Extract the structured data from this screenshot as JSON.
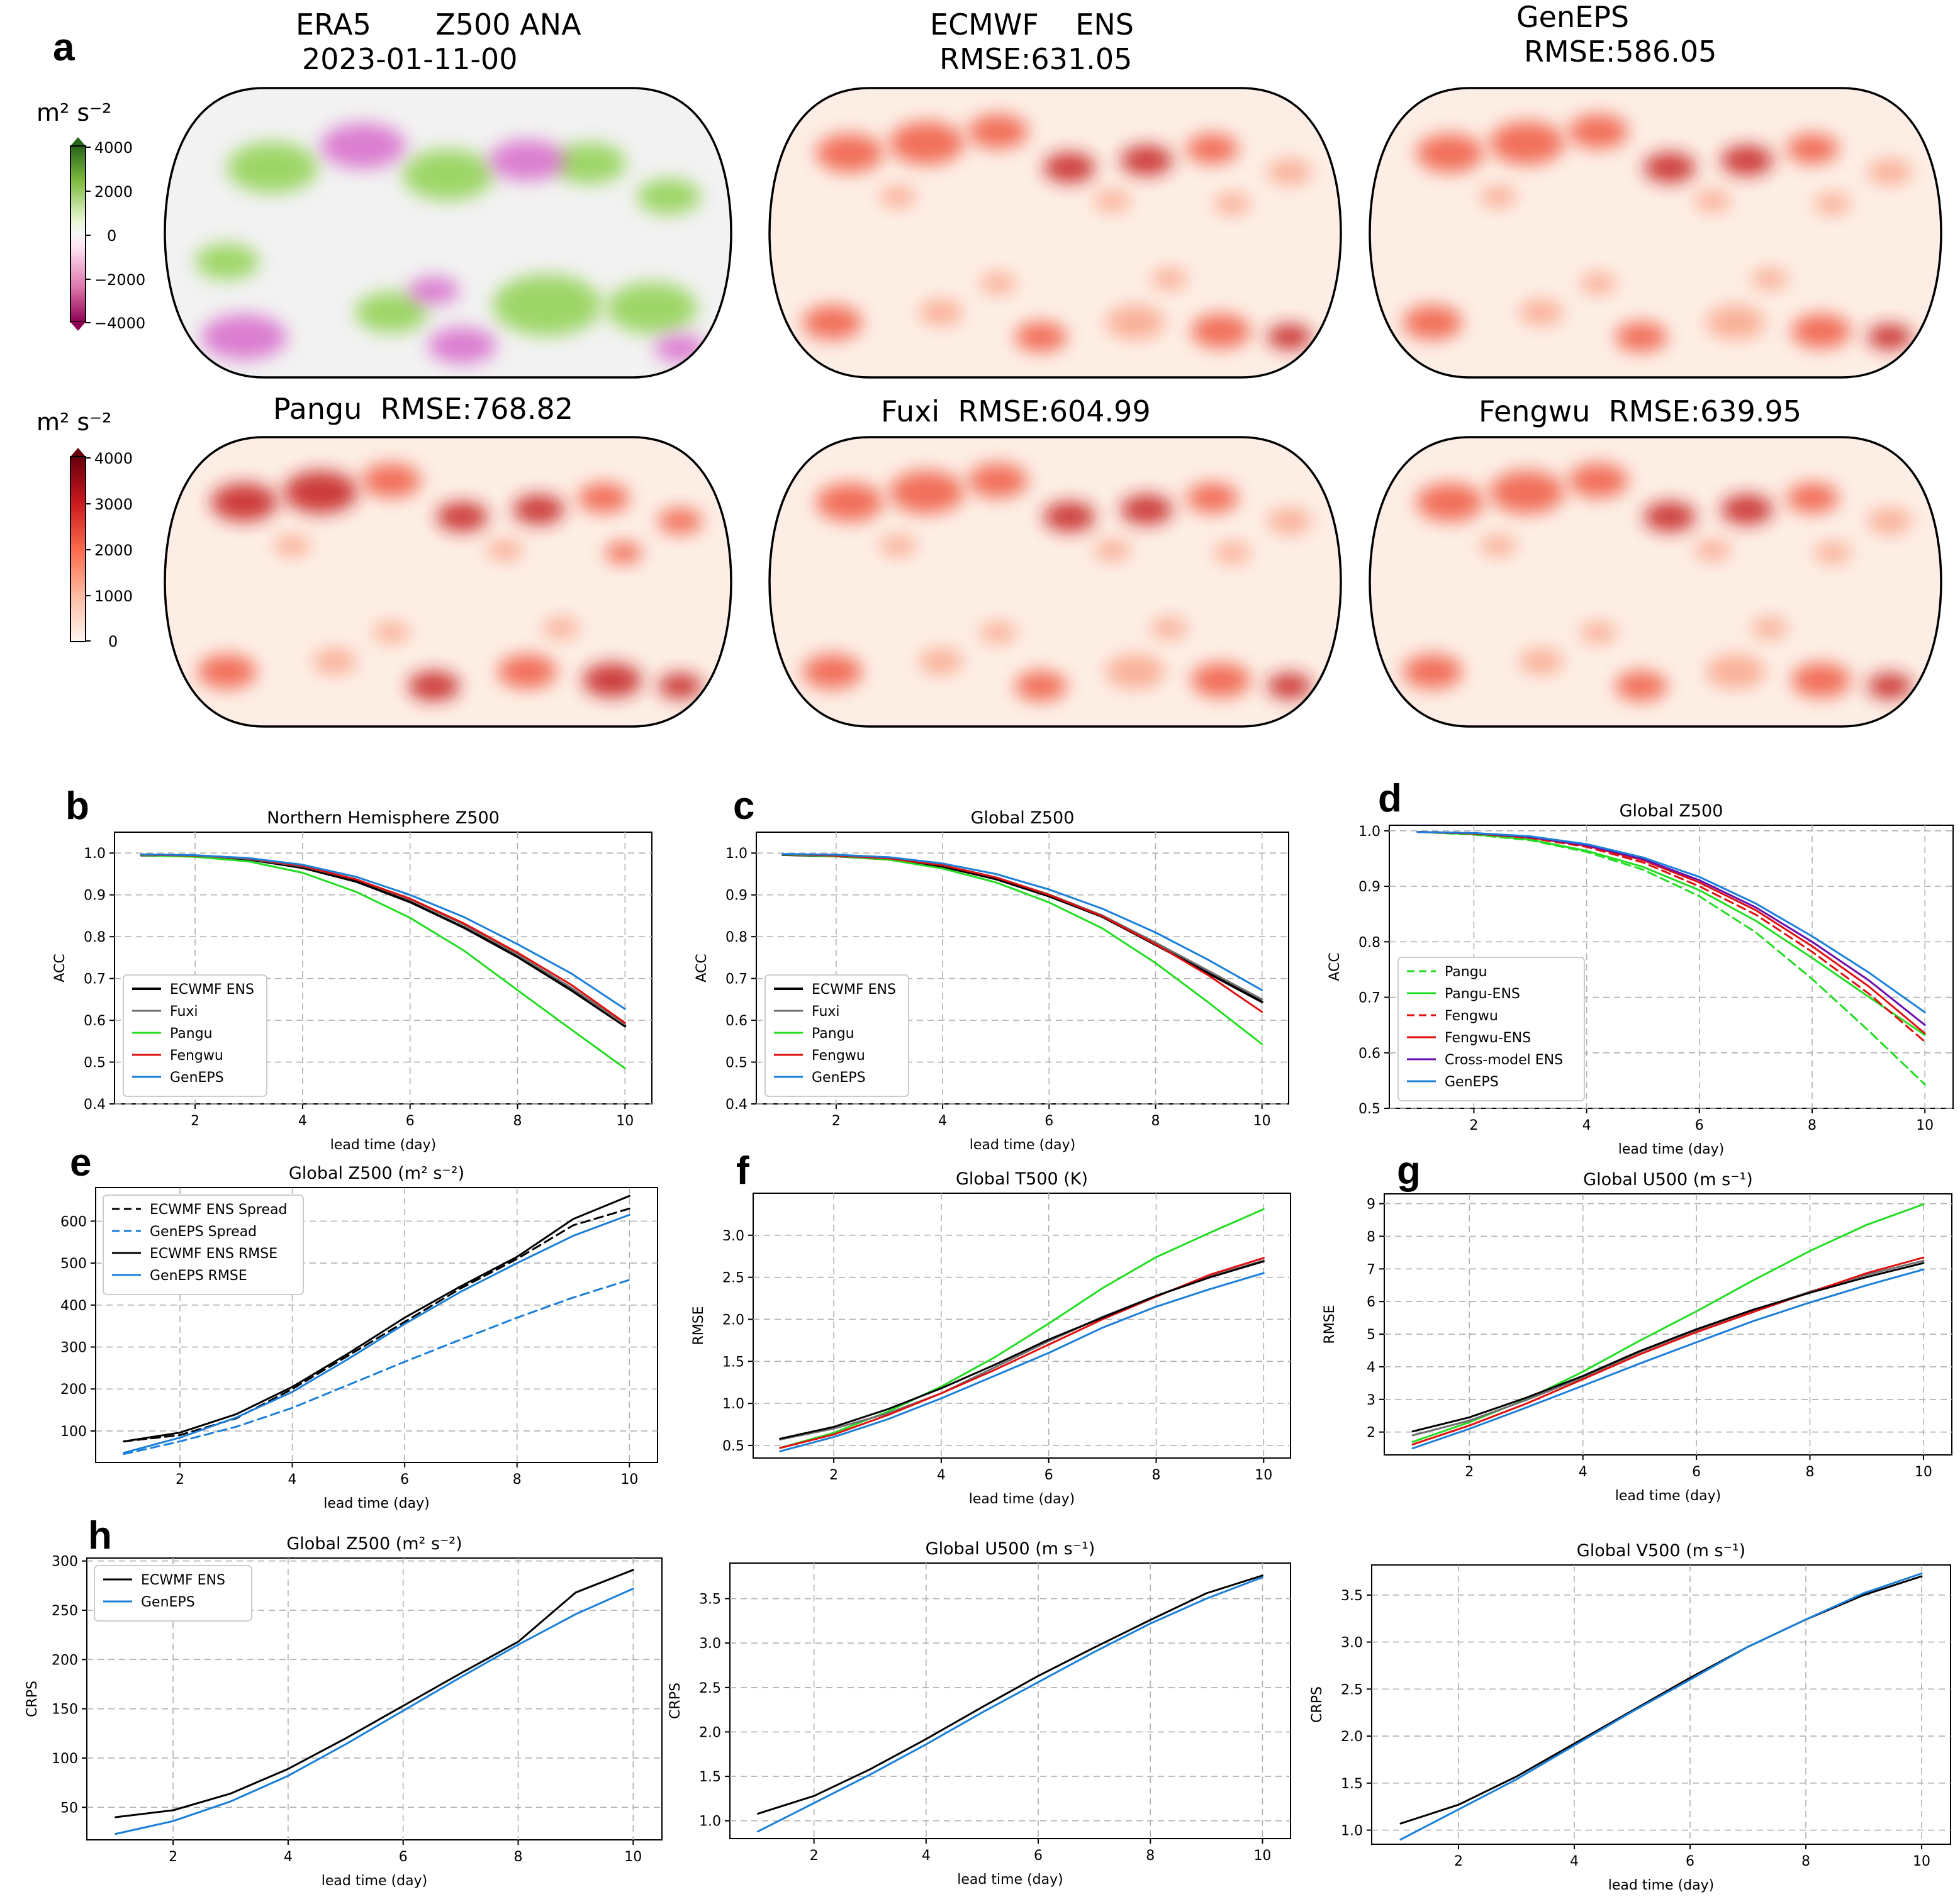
{
  "colors": {
    "ECWMF ENS": "#000000",
    "Fuxi": "#707070",
    "Pangu": "#22dd22",
    "Pangu-ENS": "#22dd22",
    "Fengwu": "#e01010",
    "Fengwu-ENS": "#e01010",
    "GenEPS": "#1a7fd9",
    "Cross-model ENS": "#6a0dad",
    "ECWMF ENS Spread": "#000000",
    "GenEPS  Spread": "#1a7fd9",
    "ECWMF ENS RMSE": "#000000",
    "GenEPS  RMSE": "#1a7fd9"
  },
  "maps": {
    "letter": "a",
    "unit_label": "m² s⁻²",
    "anomaly_colorbar": {
      "ticks": [
        "4000",
        "2000",
        "0",
        "−2000",
        "−4000"
      ],
      "range": [
        -4000,
        4000
      ],
      "colormap": "PiYG"
    },
    "error_colorbar": {
      "ticks": [
        "4000",
        "3000",
        "2000",
        "1000",
        "0"
      ],
      "range": [
        0,
        4000
      ],
      "colormap": "Reds"
    },
    "panels": [
      {
        "title_line1": "ERA5       Z500 ANA",
        "title_line2": "2023-01-11-00",
        "kind": "anomaly"
      },
      {
        "title_line1": "ECMWF    ENS",
        "title_line2": "RMSE:631.05",
        "kind": "error"
      },
      {
        "title_line1": "GenEPS",
        "title_line2": "RMSE:586.05",
        "kind": "error"
      },
      {
        "title_line1": "Pangu  RMSE:768.82",
        "title_line2": "",
        "kind": "error"
      },
      {
        "title_line1": "Fuxi  RMSE:604.99",
        "title_line2": "",
        "kind": "error"
      },
      {
        "title_line1": "Fengwu  RMSE:639.95",
        "title_line2": "",
        "kind": "error"
      }
    ]
  },
  "chart_data": [
    {
      "id": "b",
      "letter": "b",
      "type": "line",
      "title": "Northern Hemisphere Z500",
      "xlabel": "lead time (day)",
      "ylabel": "ACC",
      "xlim": [
        0.5,
        10.5
      ],
      "ylim": [
        0.4,
        1.05
      ],
      "xticks": [
        2,
        4,
        6,
        8,
        10
      ],
      "yticks": [
        0.4,
        0.5,
        0.6,
        0.7,
        0.8,
        0.9,
        1.0
      ],
      "ytick_labels": [
        "0.4",
        "0.5",
        "0.6",
        "0.7",
        "0.8",
        "0.9",
        "1.0"
      ],
      "legend_position": "lower-left",
      "x": [
        1,
        2,
        3,
        4,
        5,
        6,
        7,
        8,
        9,
        10
      ],
      "series": [
        {
          "name": "ECWMF ENS",
          "style": "solid",
          "width": 4,
          "values": [
            0.995,
            0.993,
            0.985,
            0.965,
            0.932,
            0.883,
            0.822,
            0.752,
            0.672,
            0.586
          ]
        },
        {
          "name": "Fuxi",
          "style": "solid",
          "width": 3,
          "values": [
            0.996,
            0.994,
            0.986,
            0.968,
            0.937,
            0.889,
            0.829,
            0.757,
            0.678,
            0.59
          ]
        },
        {
          "name": "Pangu",
          "style": "solid",
          "width": 3,
          "values": [
            0.995,
            0.991,
            0.98,
            0.953,
            0.907,
            0.845,
            0.767,
            0.672,
            0.578,
            0.485
          ]
        },
        {
          "name": "Fengwu",
          "style": "solid",
          "width": 3,
          "values": [
            0.996,
            0.994,
            0.987,
            0.969,
            0.937,
            0.891,
            0.832,
            0.762,
            0.685,
            0.594
          ]
        },
        {
          "name": "GenEPS",
          "style": "solid",
          "width": 3,
          "values": [
            0.997,
            0.995,
            0.988,
            0.972,
            0.943,
            0.9,
            0.847,
            0.782,
            0.712,
            0.627
          ]
        }
      ]
    },
    {
      "id": "c",
      "letter": "c",
      "type": "line",
      "title": "Global Z500",
      "xlabel": "lead time (day)",
      "ylabel": "ACC",
      "xlim": [
        0.5,
        10.5
      ],
      "ylim": [
        0.4,
        1.05
      ],
      "xticks": [
        2,
        4,
        6,
        8,
        10
      ],
      "yticks": [
        0.4,
        0.5,
        0.6,
        0.7,
        0.8,
        0.9,
        1.0
      ],
      "ytick_labels": [
        "0.4",
        "0.5",
        "0.6",
        "0.7",
        "0.8",
        "0.9",
        "1.0"
      ],
      "legend_position": "lower-left",
      "x": [
        1,
        2,
        3,
        4,
        5,
        6,
        7,
        8,
        9,
        10
      ],
      "series": [
        {
          "name": "ECWMF ENS",
          "style": "solid",
          "width": 4,
          "values": [
            0.996,
            0.993,
            0.985,
            0.968,
            0.938,
            0.897,
            0.848,
            0.781,
            0.712,
            0.644
          ]
        },
        {
          "name": "Fuxi",
          "style": "solid",
          "width": 3,
          "values": [
            0.997,
            0.994,
            0.987,
            0.971,
            0.942,
            0.901,
            0.851,
            0.786,
            0.718,
            0.65
          ]
        },
        {
          "name": "Pangu",
          "style": "solid",
          "width": 3,
          "values": [
            0.996,
            0.993,
            0.984,
            0.963,
            0.93,
            0.882,
            0.82,
            0.737,
            0.642,
            0.543
          ]
        },
        {
          "name": "Fengwu",
          "style": "solid",
          "width": 3,
          "values": [
            0.997,
            0.994,
            0.987,
            0.971,
            0.942,
            0.9,
            0.849,
            0.782,
            0.707,
            0.62
          ]
        },
        {
          "name": "GenEPS",
          "style": "solid",
          "width": 3,
          "values": [
            0.998,
            0.996,
            0.99,
            0.975,
            0.95,
            0.913,
            0.867,
            0.81,
            0.744,
            0.672
          ]
        }
      ]
    },
    {
      "id": "d",
      "letter": "d",
      "type": "line",
      "title": "Global Z500",
      "xlabel": "lead time (day)",
      "ylabel": "ACC",
      "xlim": [
        0.5,
        10.5
      ],
      "ylim": [
        0.5,
        1.01
      ],
      "xticks": [
        2,
        4,
        6,
        8,
        10
      ],
      "yticks": [
        0.5,
        0.6,
        0.7,
        0.8,
        0.9,
        1.0
      ],
      "ytick_labels": [
        "0.5",
        "0.6",
        "0.7",
        "0.8",
        "0.9",
        "1.0"
      ],
      "legend_position": "lower-left",
      "x": [
        1,
        2,
        3,
        4,
        5,
        6,
        7,
        8,
        9,
        10
      ],
      "series": [
        {
          "name": "Pangu",
          "style": "dashed",
          "width": 3,
          "values": [
            0.998,
            0.993,
            0.983,
            0.962,
            0.93,
            0.882,
            0.817,
            0.733,
            0.64,
            0.543
          ]
        },
        {
          "name": "Pangu-ENS",
          "style": "solid",
          "width": 3,
          "values": [
            0.998,
            0.994,
            0.984,
            0.964,
            0.935,
            0.893,
            0.838,
            0.771,
            0.701,
            0.632
          ]
        },
        {
          "name": "Fengwu",
          "style": "dashed",
          "width": 3,
          "values": [
            0.998,
            0.995,
            0.987,
            0.971,
            0.943,
            0.9,
            0.849,
            0.782,
            0.707,
            0.62
          ]
        },
        {
          "name": "Fengwu-ENS",
          "style": "solid",
          "width": 3,
          "values": [
            0.998,
            0.995,
            0.988,
            0.973,
            0.947,
            0.907,
            0.857,
            0.792,
            0.72,
            0.635
          ]
        },
        {
          "name": "Cross-model ENS",
          "style": "solid",
          "width": 3,
          "values": [
            0.998,
            0.996,
            0.989,
            0.974,
            0.949,
            0.911,
            0.862,
            0.8,
            0.731,
            0.65
          ]
        },
        {
          "name": "GenEPS",
          "style": "solid",
          "width": 3,
          "values": [
            0.998,
            0.996,
            0.99,
            0.976,
            0.952,
            0.917,
            0.869,
            0.81,
            0.745,
            0.673
          ]
        }
      ]
    },
    {
      "id": "e",
      "letter": "e",
      "type": "line",
      "title": "Global Z500 (m² s⁻²)",
      "xlabel": "lead time (day)",
      "ylabel": "",
      "xlim": [
        0.5,
        10.5
      ],
      "ylim": [
        25,
        680
      ],
      "xticks": [
        2,
        4,
        6,
        8,
        10
      ],
      "yticks": [
        100,
        200,
        300,
        400,
        500,
        600
      ],
      "ytick_labels": [
        "100",
        "200",
        "300",
        "400",
        "500",
        "600"
      ],
      "legend_position": "top-left",
      "x": [
        1,
        2,
        3,
        4,
        5,
        6,
        7,
        8,
        9,
        10
      ],
      "series": [
        {
          "name": "ECWMF ENS Spread",
          "style": "dashed",
          "width": 3,
          "values": [
            75,
            90,
            130,
            200,
            280,
            360,
            440,
            510,
            590,
            630
          ]
        },
        {
          "name": "GenEPS  Spread",
          "style": "dashed",
          "width": 3,
          "values": [
            45,
            75,
            110,
            155,
            210,
            265,
            318,
            370,
            418,
            460
          ]
        },
        {
          "name": "ECWMF ENS RMSE",
          "style": "solid",
          "width": 3,
          "values": [
            75,
            96,
            140,
            205,
            285,
            370,
            445,
            515,
            605,
            660
          ]
        },
        {
          "name": "GenEPS  RMSE",
          "style": "solid",
          "width": 3,
          "values": [
            48,
            84,
            132,
            193,
            272,
            355,
            432,
            500,
            565,
            615
          ]
        }
      ]
    },
    {
      "id": "f",
      "letter": "f",
      "type": "line",
      "title": "Global T500 (K)",
      "xlabel": "lead time (day)",
      "ylabel": "RMSE",
      "xlim": [
        0.5,
        10.5
      ],
      "ylim": [
        0.35,
        3.5
      ],
      "xticks": [
        2,
        4,
        6,
        8,
        10
      ],
      "yticks": [
        0.5,
        1.0,
        1.5,
        2.0,
        2.5,
        3.0
      ],
      "ytick_labels": [
        "0.5",
        "1.0",
        "1.5",
        "2.0",
        "2.5",
        "3.0"
      ],
      "legend_position": "none",
      "x": [
        1,
        2,
        3,
        4,
        5,
        6,
        7,
        8,
        9,
        10
      ],
      "series": [
        {
          "name": "Pangu",
          "style": "solid",
          "width": 3,
          "values": [
            0.47,
            0.65,
            0.9,
            1.2,
            1.55,
            1.95,
            2.37,
            2.74,
            3.03,
            3.31
          ]
        },
        {
          "name": "Fuxi",
          "style": "solid",
          "width": 3,
          "values": [
            0.57,
            0.7,
            0.88,
            1.12,
            1.43,
            1.74,
            2.03,
            2.28,
            2.51,
            2.7
          ]
        },
        {
          "name": "Fengwu",
          "style": "solid",
          "width": 3,
          "values": [
            0.47,
            0.63,
            0.86,
            1.12,
            1.4,
            1.7,
            2.0,
            2.27,
            2.53,
            2.73
          ]
        },
        {
          "name": "ECWMF ENS",
          "style": "solid",
          "width": 3,
          "values": [
            0.58,
            0.72,
            0.93,
            1.18,
            1.46,
            1.76,
            2.02,
            2.28,
            2.5,
            2.69
          ]
        },
        {
          "name": "GenEPS",
          "style": "solid",
          "width": 3,
          "values": [
            0.43,
            0.6,
            0.81,
            1.06,
            1.33,
            1.6,
            1.9,
            2.15,
            2.36,
            2.55
          ]
        }
      ]
    },
    {
      "id": "g",
      "letter": "g",
      "type": "line",
      "title": "Global U500 (m s⁻¹)",
      "xlabel": "lead time (day)",
      "ylabel": "RMSE",
      "xlim": [
        0.5,
        10.5
      ],
      "ylim": [
        1.3,
        9.3
      ],
      "xticks": [
        2,
        4,
        6,
        8,
        10
      ],
      "yticks": [
        2,
        3,
        4,
        5,
        6,
        7,
        8,
        9
      ],
      "ytick_labels": [
        "2",
        "3",
        "4",
        "5",
        "6",
        "7",
        "8",
        "9"
      ],
      "legend_position": "none",
      "x": [
        1,
        2,
        3,
        4,
        5,
        6,
        7,
        8,
        9,
        10
      ],
      "series": [
        {
          "name": "Pangu",
          "style": "solid",
          "width": 3,
          "values": [
            1.7,
            2.3,
            3.0,
            3.85,
            4.8,
            5.7,
            6.65,
            7.55,
            8.35,
            8.98
          ]
        },
        {
          "name": "Fuxi",
          "style": "solid",
          "width": 3,
          "values": [
            1.9,
            2.35,
            2.98,
            3.67,
            4.45,
            5.12,
            5.72,
            6.3,
            6.82,
            7.25
          ]
        },
        {
          "name": "Fengwu",
          "style": "solid",
          "width": 3,
          "values": [
            1.62,
            2.2,
            2.87,
            3.62,
            4.38,
            5.06,
            5.68,
            6.28,
            6.87,
            7.35
          ]
        },
        {
          "name": "ECWMF ENS",
          "style": "solid",
          "width": 3,
          "values": [
            2.02,
            2.45,
            3.05,
            3.72,
            4.48,
            5.15,
            5.75,
            6.27,
            6.75,
            7.18
          ]
        },
        {
          "name": "GenEPS",
          "style": "solid",
          "width": 3,
          "values": [
            1.5,
            2.1,
            2.75,
            3.42,
            4.1,
            4.75,
            5.4,
            5.97,
            6.5,
            6.98
          ]
        }
      ]
    },
    {
      "id": "h",
      "letter": "h",
      "type": "line",
      "title": "Global Z500 (m² s⁻²)",
      "xlabel": "lead time (day)",
      "ylabel": "CRPS",
      "xlim": [
        0.5,
        10.5
      ],
      "ylim": [
        17,
        303
      ],
      "xticks": [
        2,
        4,
        6,
        8,
        10
      ],
      "yticks": [
        50,
        100,
        150,
        200,
        250,
        300
      ],
      "ytick_labels": [
        "50",
        "100",
        "150",
        "200",
        "250",
        "300"
      ],
      "legend_position": "top-left",
      "x": [
        1,
        2,
        3,
        4,
        5,
        6,
        7,
        8,
        9,
        10
      ],
      "series": [
        {
          "name": "ECWMF ENS",
          "style": "solid",
          "width": 3,
          "values": [
            40,
            47,
            64,
            89,
            120,
            153,
            186,
            218,
            268,
            291
          ]
        },
        {
          "name": "GenEPS",
          "style": "solid",
          "width": 3,
          "values": [
            23,
            36,
            56,
            82,
            114,
            148,
            182,
            215,
            246,
            272
          ]
        }
      ]
    },
    {
      "id": "i",
      "letter": "",
      "type": "line",
      "title": "Global U500 (m s⁻¹)",
      "xlabel": "lead time (day)",
      "ylabel": "CRPS",
      "xlim": [
        0.5,
        10.5
      ],
      "ylim": [
        0.8,
        3.9
      ],
      "xticks": [
        2,
        4,
        6,
        8,
        10
      ],
      "yticks": [
        1.0,
        1.5,
        2.0,
        2.5,
        3.0,
        3.5
      ],
      "ytick_labels": [
        "1.0",
        "1.5",
        "2.0",
        "2.5",
        "3.0",
        "3.5"
      ],
      "legend_position": "none",
      "x": [
        1,
        2,
        3,
        4,
        5,
        6,
        7,
        8,
        9,
        10
      ],
      "series": [
        {
          "name": "ECWMF ENS",
          "style": "solid",
          "width": 3,
          "values": [
            1.08,
            1.28,
            1.58,
            1.92,
            2.28,
            2.63,
            2.95,
            3.26,
            3.56,
            3.76
          ]
        },
        {
          "name": "GenEPS",
          "style": "solid",
          "width": 3,
          "values": [
            0.88,
            1.2,
            1.52,
            1.86,
            2.22,
            2.56,
            2.9,
            3.22,
            3.5,
            3.74
          ]
        }
      ]
    },
    {
      "id": "j",
      "letter": "",
      "type": "line",
      "title": "Global V500 (m s⁻¹)",
      "xlabel": "lead time (day)",
      "ylabel": "CRPS",
      "xlim": [
        0.5,
        10.5
      ],
      "ylim": [
        0.85,
        3.82
      ],
      "xticks": [
        2,
        4,
        6,
        8,
        10
      ],
      "yticks": [
        1.0,
        1.5,
        2.0,
        2.5,
        3.0,
        3.5
      ],
      "ytick_labels": [
        "1.0",
        "1.5",
        "2.0",
        "2.5",
        "3.0",
        "3.5"
      ],
      "legend_position": "none",
      "x": [
        1,
        2,
        3,
        4,
        5,
        6,
        7,
        8,
        9,
        10
      ],
      "series": [
        {
          "name": "ECWMF ENS",
          "style": "solid",
          "width": 3,
          "values": [
            1.07,
            1.27,
            1.57,
            1.92,
            2.27,
            2.62,
            2.95,
            3.24,
            3.5,
            3.7
          ]
        },
        {
          "name": "GenEPS",
          "style": "solid",
          "width": 3,
          "values": [
            0.9,
            1.22,
            1.54,
            1.9,
            2.26,
            2.6,
            2.95,
            3.24,
            3.52,
            3.73
          ]
        }
      ]
    }
  ]
}
